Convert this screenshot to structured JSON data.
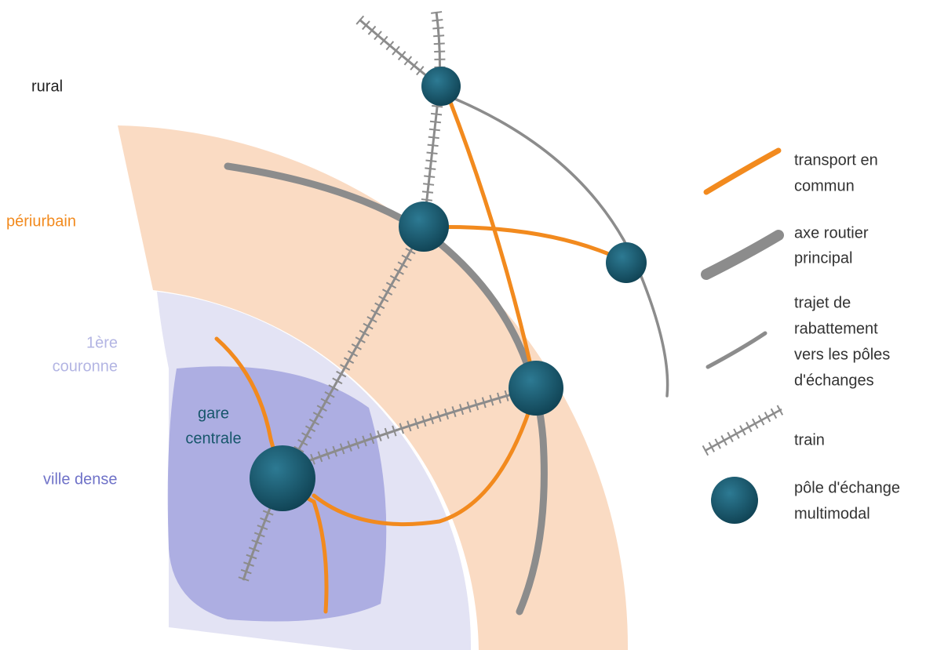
{
  "zones": [
    {
      "lines": [
        "rural"
      ]
    },
    {
      "lines": [
        "périurbain"
      ]
    },
    {
      "lines": [
        "1ère",
        "couronne"
      ]
    },
    {
      "lines": [
        "ville dense"
      ]
    }
  ],
  "station": {
    "lines": [
      "gare",
      "centrale"
    ]
  },
  "legend": [
    {
      "lines": [
        "transport en",
        "commun"
      ]
    },
    {
      "lines": [
        "axe routier",
        "principal"
      ]
    },
    {
      "lines": [
        "trajet de",
        "rabattement",
        "vers les pôles",
        "d'échanges"
      ]
    },
    {
      "lines": [
        "train"
      ]
    },
    {
      "lines": [
        "pôle d'échange",
        "multimodal"
      ]
    }
  ]
}
